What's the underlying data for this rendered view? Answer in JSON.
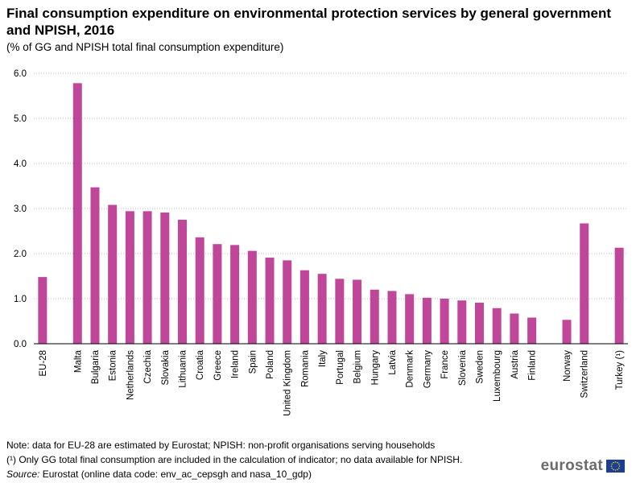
{
  "header": {
    "title": "Final consumption expenditure on environmental protection services by general government and NPISH, 2016",
    "subtitle": "(% of GG and NPISH  total final consumption  expenditure)"
  },
  "footer": {
    "note": "Note: data for EU-28 are estimated by Eurostat; NPISH: non-profit organisations serving households",
    "footnote": "(¹) Only  GG total final consumption are included in the calculation of indicator; no data available for NPISH.",
    "source_label": "Source:",
    "source_text": " Eurostat (online data code: env_ac_cepsgh and nasa_10_gdp)"
  },
  "logo": {
    "text": "eurostat",
    "flag_icon": "eu-flag-icon"
  },
  "colors": {
    "bar": "#c0469a",
    "grid": "#b9b9b9",
    "axis": "#000000"
  },
  "chart_data": {
    "type": "bar",
    "title": "Final consumption expenditure on environmental protection services by general government and NPISH, 2016",
    "ylabel": "% of GG and NPISH total final consumption expenditure",
    "ylim": [
      0,
      6
    ],
    "yticks": [
      "0.0",
      "1.0",
      "2.0",
      "3.0",
      "4.0",
      "5.0",
      "6.0"
    ],
    "grid": true,
    "categories": [
      "EU-28",
      "",
      "Malta",
      "Bulgaria",
      "Estonia",
      "Netherlands",
      "Czechia",
      "Slovakia",
      "Lithuania",
      "Croatia",
      "Greece",
      "Ireland",
      "Spain",
      "Poland",
      "United Kingdom",
      "Romania",
      "Italy",
      "Portugal",
      "Belgium",
      "Hungary",
      "Latvia",
      "Denmark",
      "Germany",
      "France",
      "Slovenia",
      "Sweden",
      "Luxembourg",
      "Austria",
      "Finland",
      "",
      "Norway",
      "Switzerland",
      "",
      "Turkey (¹)"
    ],
    "values": [
      1.48,
      null,
      5.78,
      3.47,
      3.08,
      2.94,
      2.94,
      2.91,
      2.75,
      2.36,
      2.21,
      2.19,
      2.06,
      1.91,
      1.85,
      1.63,
      1.55,
      1.44,
      1.42,
      1.2,
      1.17,
      1.1,
      1.02,
      1.0,
      0.96,
      0.91,
      0.79,
      0.67,
      0.58,
      null,
      0.53,
      2.67,
      null,
      2.13
    ]
  }
}
